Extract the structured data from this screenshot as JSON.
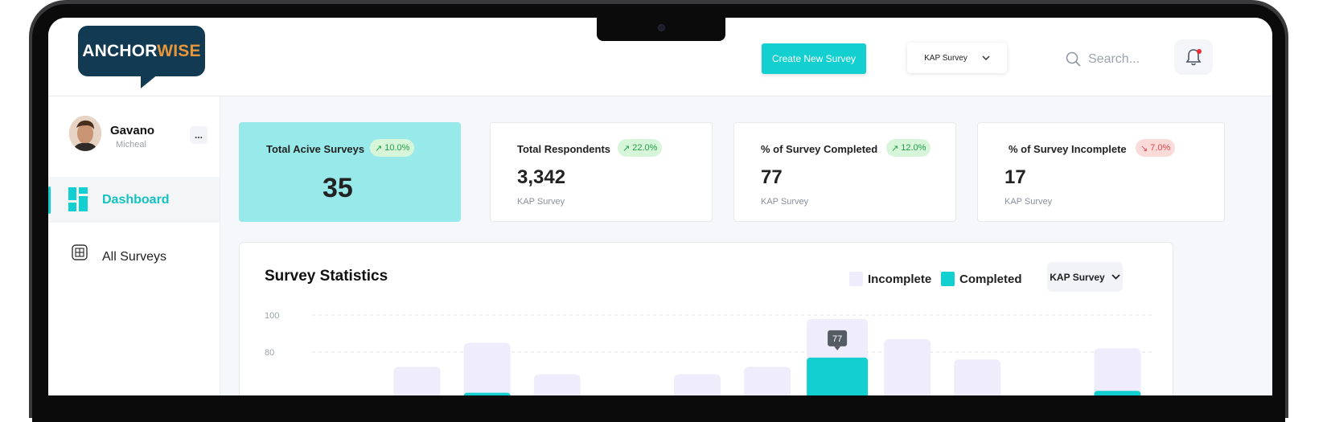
{
  "header": {
    "logo_part1": "ANCHOR",
    "logo_part2": "WISE",
    "create_button": "Create New Survey",
    "survey_select": "KAP Survey",
    "search_placeholder": "Search..."
  },
  "sidebar": {
    "user_name": "Gavano",
    "user_subtitle": "Micheal",
    "more_label": "...",
    "items": [
      {
        "label": "Dashboard",
        "icon": "dashboard-icon",
        "active": true
      },
      {
        "label": "All Surveys",
        "icon": "surveys-icon",
        "active": false
      }
    ]
  },
  "stats": [
    {
      "title": "Total Acive Surveys",
      "badge": "10.0%",
      "trend": "up",
      "value": "35",
      "sub": ""
    },
    {
      "title": "Total Respondents",
      "badge": "22.0%",
      "trend": "up",
      "value": "3,342",
      "sub": "KAP Survey"
    },
    {
      "title": "% of Survey Completed",
      "badge": "12.0%",
      "trend": "up",
      "value": "77",
      "sub": "KAP Survey"
    },
    {
      "title": "% of Survey Incomplete",
      "badge": "7.0%",
      "trend": "down",
      "value": "17",
      "sub": "KAP Survey"
    }
  ],
  "chart_panel": {
    "title": "Survey Statistics",
    "legend_incomplete": "Incomplete",
    "legend_completed": "Completed",
    "select_label": "KAP Survey",
    "tooltip": "77"
  },
  "colors": {
    "accent": "#14cfcf",
    "active_card": "#98e9e9",
    "incomplete": "#efedfb",
    "completed": "#14cfcf",
    "logo_bg": "#123a52",
    "logo_orange": "#e8963a"
  },
  "chart_data": {
    "type": "bar",
    "title": "Survey Statistics",
    "xlabel": "",
    "ylabel": "",
    "ylim": [
      0,
      100
    ],
    "y_ticks": [
      100,
      80
    ],
    "series": [
      {
        "name": "Incomplete",
        "values": [
          null,
          72,
          85,
          68,
          null,
          68,
          72,
          98,
          87,
          76,
          null,
          82
        ]
      },
      {
        "name": "Completed",
        "values": [
          null,
          null,
          58,
          null,
          null,
          null,
          null,
          77,
          null,
          null,
          null,
          59
        ]
      }
    ],
    "grid": true,
    "legend": "top-right"
  }
}
